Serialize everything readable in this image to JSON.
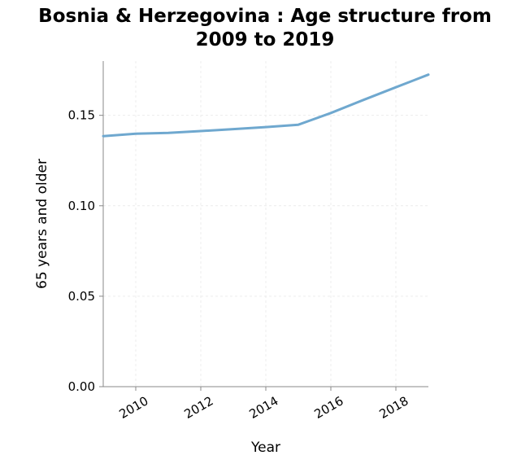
{
  "chart_data": {
    "type": "line",
    "title": "Bosnia & Herzegovina : Age structure from 2009 to 2019",
    "xlabel": "Year",
    "ylabel": "65 years and older",
    "xlim": [
      2009,
      2019
    ],
    "ylim": [
      0,
      0.18
    ],
    "x_ticks": [
      2010,
      2012,
      2014,
      2016,
      2018
    ],
    "y_ticks": [
      0.0,
      0.05,
      0.1,
      0.15
    ],
    "y_tick_labels": [
      "0.00",
      "0.05",
      "0.10",
      "0.15"
    ],
    "grid": true,
    "legend": "none",
    "series": [
      {
        "color": "#6fa8cf",
        "x": [
          2009,
          2010,
          2011,
          2012,
          2013,
          2014,
          2015,
          2016,
          2017,
          2018,
          2019
        ],
        "values": [
          0.1385,
          0.1398,
          0.1403,
          0.1413,
          0.1424,
          0.1435,
          0.1448,
          0.1513,
          0.1585,
          0.1655,
          0.1725
        ]
      }
    ]
  }
}
